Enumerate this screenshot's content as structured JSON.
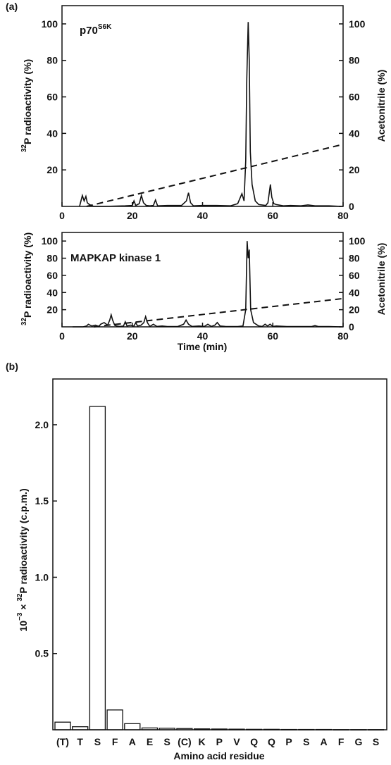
{
  "panel_a_label": "(a)",
  "panel_b_label": "(b)",
  "chart_data": [
    {
      "type": "line",
      "inset_label": "p70",
      "inset_superscript": "S6K",
      "ylabel": "P radioactivity (%)",
      "ylabel_superscript": "32",
      "y2label": "Acetonitrile (%)",
      "xlim": [
        0,
        80
      ],
      "ylim": [
        0,
        110
      ],
      "y2lim": [
        0,
        110
      ],
      "xticks": [
        "0",
        "20",
        "40",
        "60",
        "80"
      ],
      "yticks": [
        "20",
        "40",
        "60",
        "80",
        "100"
      ],
      "y2ticks": [
        "0",
        "20",
        "40",
        "60",
        "80",
        "100"
      ],
      "series": [
        {
          "style": "solid",
          "x": [
            5,
            5.8,
            6.3,
            6.8,
            7.2,
            7.8,
            9,
            12,
            18,
            20,
            20.5,
            21,
            22,
            22.6,
            23.2,
            24,
            25,
            26,
            26.6,
            27.2,
            30,
            34,
            35.4,
            36,
            36.6,
            37.4,
            40,
            44,
            48,
            50,
            51.2,
            51.8,
            52.3,
            52.6,
            53,
            53.3,
            53.6,
            54.1,
            55,
            56,
            58,
            58.6,
            59.3,
            59.7,
            60.3,
            61,
            63,
            65,
            68,
            70,
            72,
            76,
            79.5
          ],
          "values": [
            0,
            6,
            3,
            5.5,
            2,
            1,
            0,
            0,
            0.3,
            0.5,
            3,
            0.5,
            1.5,
            6,
            2,
            0.5,
            0.3,
            0.5,
            3.5,
            0.3,
            0.5,
            0.5,
            3,
            7.5,
            2,
            0.3,
            0.5,
            0.5,
            0.3,
            1.5,
            7,
            3,
            25,
            70,
            101,
            80,
            30,
            12,
            3,
            1,
            0.5,
            2,
            12,
            5,
            1.5,
            1,
            0.3,
            0.5,
            0.3,
            0.8,
            0.3,
            0.3,
            0
          ]
        },
        {
          "style": "dashed",
          "x": [
            7,
            80
          ],
          "values": [
            0,
            34
          ]
        }
      ]
    },
    {
      "type": "line",
      "inset_label": "MAPKAP kinase 1",
      "ylabel": "P radioactivity (%)",
      "ylabel_superscript": "32",
      "y2label": "Acetonitrile (%)",
      "xlabel": "Time (min)",
      "xlim": [
        0,
        80
      ],
      "ylim": [
        0,
        110
      ],
      "y2lim": [
        0,
        110
      ],
      "xticks": [
        "0",
        "20",
        "40",
        "60",
        "80"
      ],
      "yticks": [
        "20",
        "40",
        "60",
        "80",
        "100"
      ],
      "y2ticks": [
        "0",
        "20",
        "40",
        "60",
        "80",
        "100"
      ],
      "series": [
        {
          "style": "solid",
          "x": [
            3,
            6,
            7,
            7.5,
            8.5,
            9.5,
            10.5,
            11,
            12,
            13,
            13.6,
            14,
            14.4,
            15,
            15.5,
            16.5,
            17.5,
            18,
            18.5,
            19.5,
            20.5,
            21,
            21.5,
            22.5,
            23.3,
            23.8,
            24.3,
            25,
            26,
            27,
            28.5,
            30,
            33,
            34.6,
            35.3,
            36,
            37,
            39,
            40.5,
            41.5,
            42.5,
            43.5,
            44.2,
            45,
            46.5,
            48,
            50,
            51.5,
            52.3,
            52.7,
            53,
            53.3,
            53.7,
            54.5,
            56,
            57,
            57.8,
            58.5,
            59.2,
            60,
            61,
            64,
            68,
            71,
            72,
            73,
            76,
            79.5
          ],
          "values": [
            0,
            0,
            1,
            3,
            1,
            2,
            0.5,
            3,
            5,
            2,
            8,
            14,
            8,
            2,
            1,
            0.5,
            1,
            6,
            1,
            2,
            1,
            5,
            1,
            2,
            5,
            12,
            5,
            0.5,
            3,
            0.5,
            1,
            0.3,
            0.5,
            3,
            8,
            3,
            0.5,
            1,
            0.5,
            3,
            0.5,
            2,
            5,
            1,
            0.5,
            0.3,
            0.3,
            1,
            20,
            100,
            80,
            90,
            20,
            5,
            1,
            0.5,
            3,
            1,
            3,
            0.5,
            1,
            0.3,
            0.3,
            0.3,
            1.5,
            0.3,
            0.3,
            0
          ]
        },
        {
          "style": "dashed",
          "x": [
            9,
            80
          ],
          "values": [
            0,
            33
          ]
        }
      ]
    },
    {
      "type": "bar",
      "ylabel_prefix": "10",
      "ylabel_exponent": "−3",
      "ylabel_times": " × ",
      "ylabel_isotope": "32",
      "ylabel_rest": "P radioactivity (c.p.m.)",
      "xlabel": "Amino acid residue",
      "ylim": [
        0,
        2.3
      ],
      "yticks": [
        "0.5",
        "1.0",
        "1.5",
        "2.0"
      ],
      "categories": [
        "(T)",
        "T",
        "S",
        "F",
        "A",
        "E",
        "S",
        "(C)",
        "K",
        "P",
        "V",
        "Q",
        "Q",
        "P",
        "S",
        "A",
        "F",
        "G",
        "S"
      ],
      "values": [
        0.05,
        0.02,
        2.12,
        0.13,
        0.04,
        0.012,
        0.01,
        0.008,
        0.006,
        0.005,
        0.004,
        0.003,
        0.003,
        0.002,
        0.002,
        0.002,
        0.001,
        0.001,
        0.001
      ]
    }
  ]
}
